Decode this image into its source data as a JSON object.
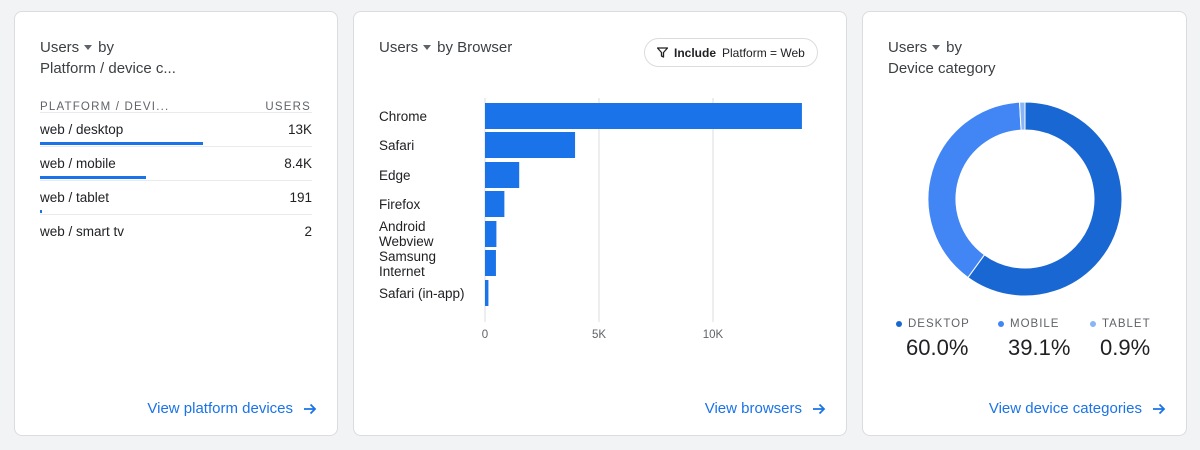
{
  "colors": {
    "accent": "#1a73e8",
    "desktop": "#1967d2",
    "mobile": "#4285f4",
    "tablet": "#8ab4f8"
  },
  "card1": {
    "title_metric": "Users",
    "title_by": "by",
    "title_dimension": "Platform / device c...",
    "col_dimension": "PLATFORM / DEVI...",
    "col_metric": "USERS",
    "rows": [
      {
        "name": "web / desktop",
        "value": "13K",
        "share": 0.6
      },
      {
        "name": "web / mobile",
        "value": "8.4K",
        "share": 0.39
      },
      {
        "name": "web / tablet",
        "value": "191",
        "share": 0.009
      },
      {
        "name": "web / smart tv",
        "value": "2",
        "share": 0
      }
    ],
    "link": "View platform devices"
  },
  "card2": {
    "title_metric": "Users",
    "title_by": "by Browser",
    "filter_include": "Include",
    "filter_text": "Platform = Web",
    "link": "View browsers"
  },
  "chart_data": {
    "type": "bar",
    "orientation": "horizontal",
    "categories": [
      "Chrome",
      "Safari",
      "Edge",
      "Firefox",
      "Android Webview",
      "Samsung Internet",
      "Safari (in-app)"
    ],
    "values": [
      13900,
      3950,
      1500,
      850,
      500,
      480,
      150
    ],
    "x_ticks": [
      0,
      5000,
      10000
    ],
    "x_tick_labels": [
      "0",
      "5K",
      "10K"
    ],
    "xlim": [
      0,
      14000
    ],
    "grid": true
  },
  "card3": {
    "title_metric": "Users",
    "title_by": "by",
    "title_dimension": "Device category",
    "legend": [
      {
        "label": "DESKTOP",
        "pct": "60.0%",
        "value": 60.0
      },
      {
        "label": "MOBILE",
        "pct": "39.1%",
        "value": 39.1
      },
      {
        "label": "TABLET",
        "pct": "0.9%",
        "value": 0.9
      }
    ],
    "link": "View device categories"
  }
}
